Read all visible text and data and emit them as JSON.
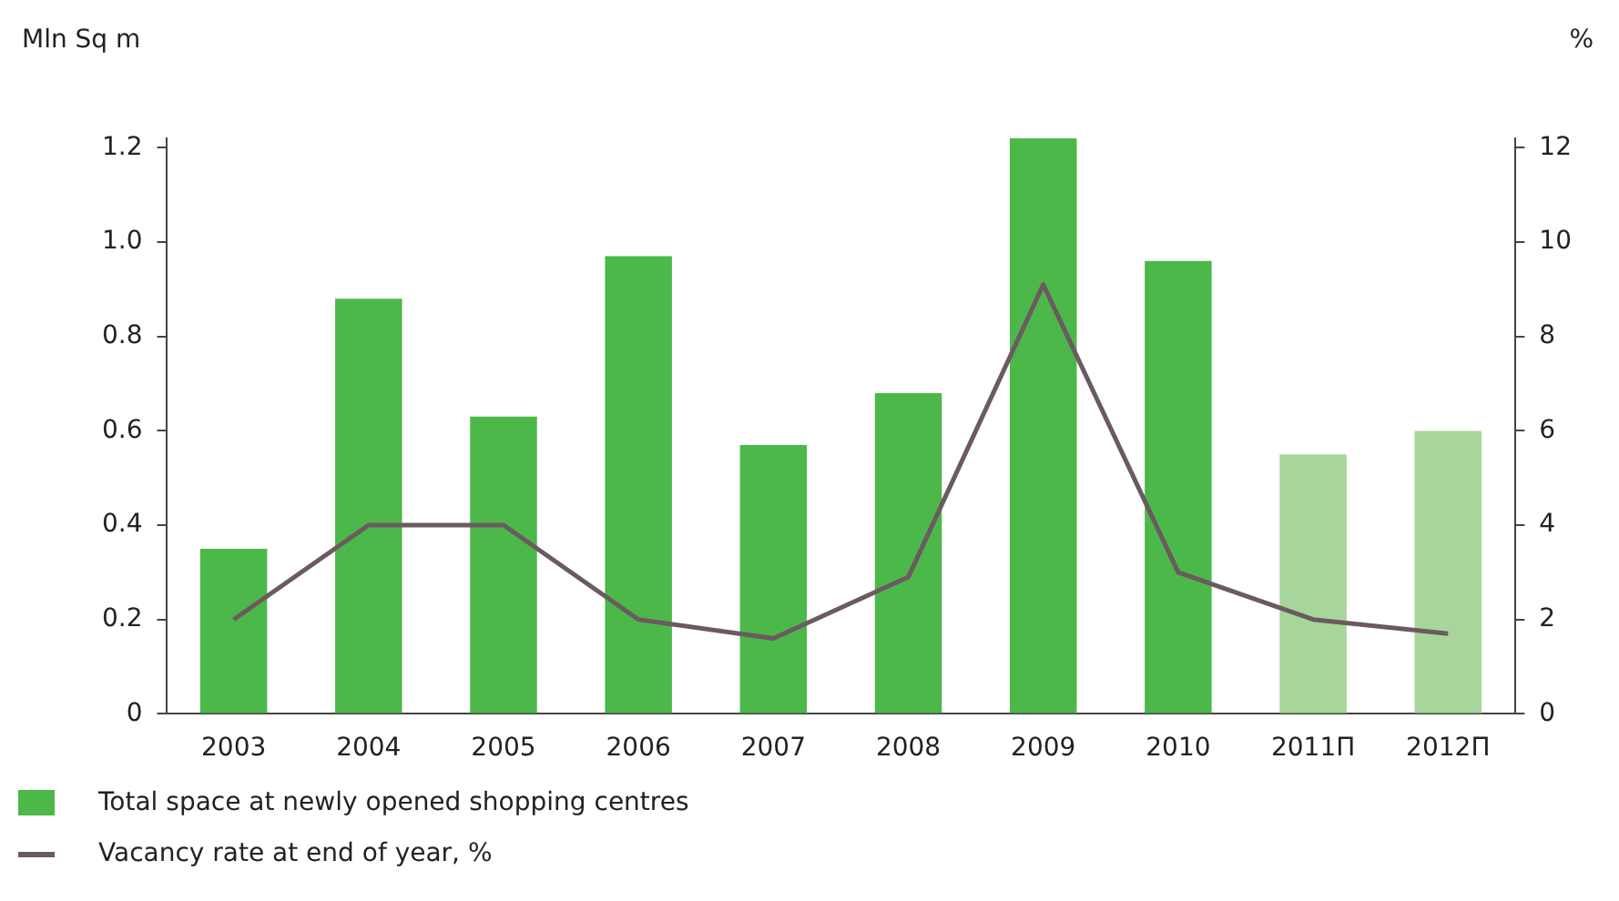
{
  "chart_data": {
    "type": "bar",
    "ylabel": "Mln Sq m",
    "y2label": "%",
    "categories": [
      "2003",
      "2004",
      "2005",
      "2006",
      "2007",
      "2008",
      "2009",
      "2010",
      "2011П",
      "2012П"
    ],
    "series": [
      {
        "name": "Total space at newly opened shopping centres",
        "color": "#4cb84a",
        "colors": [
          "#4cb84a",
          "#4cb84a",
          "#4cb84a",
          "#4cb84a",
          "#4cb84a",
          "#4cb84a",
          "#4cb84a",
          "#4cb84a",
          "#a8d69a",
          "#a8d69a"
        ],
        "values": [
          0.35,
          0.88,
          0.63,
          0.97,
          0.57,
          0.68,
          1.22,
          0.96,
          0.55,
          0.6
        ]
      },
      {
        "name": "Vacancy rate at end of year, %",
        "type": "line",
        "axis": "y2",
        "color": "#6b5a60",
        "marker": "none",
        "values": [
          2.0,
          4.0,
          4.0,
          2.0,
          1.6,
          2.9,
          9.1,
          3.0,
          2.0,
          1.7
        ]
      }
    ],
    "ylim": [
      0,
      1.22
    ],
    "yticks": [
      0,
      0.2,
      0.4,
      0.6,
      0.8,
      {
        "value": 1,
        "label": "1.0"
      },
      1.2
    ],
    "y2lim": [
      0,
      12.2
    ],
    "y2ticks": [
      0,
      2,
      4,
      6,
      8,
      10,
      12
    ],
    "grid": false,
    "legend": "bottom"
  }
}
